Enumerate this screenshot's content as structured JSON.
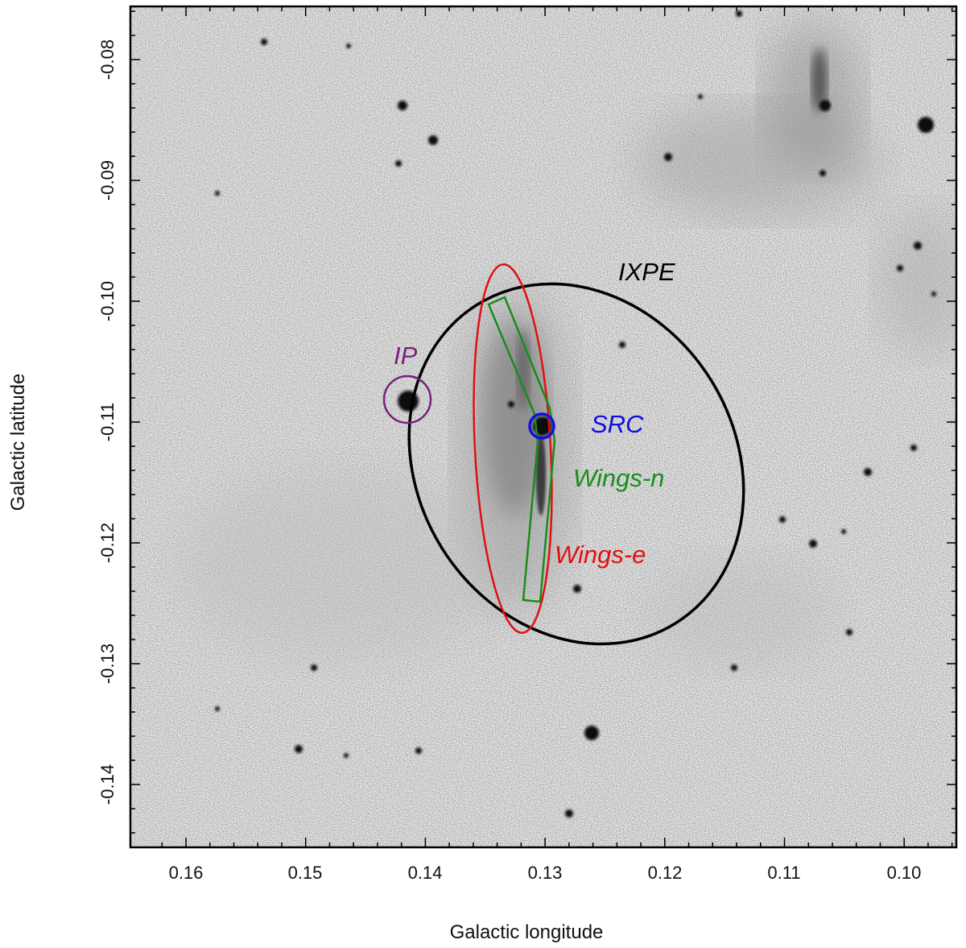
{
  "axes": {
    "xlabel": "Galactic longitude",
    "ylabel": "Galactic latitude",
    "xlim": [
      0.1648,
      0.0958
    ],
    "ylim": [
      -0.1448,
      -0.0742
    ],
    "xticks": [
      "0.16",
      "0.15",
      "0.14",
      "0.13",
      "0.12",
      "0.11",
      "0.10"
    ],
    "yticks": [
      "-0.08",
      "-0.09",
      "-0.10",
      "-0.11",
      "-0.12",
      "-0.13",
      "-0.14"
    ]
  },
  "regions": {
    "ixpe": {
      "label": "IXPE",
      "color": "#000000"
    },
    "ip": {
      "label": "IP",
      "color": "#7b1f7b"
    },
    "src": {
      "label": "SRC",
      "color": "#1010e0"
    },
    "wings_n": {
      "label": "Wings-n",
      "color": "#1a8c1a"
    },
    "wings_e": {
      "label": "Wings-e",
      "color": "#e01010"
    }
  }
}
